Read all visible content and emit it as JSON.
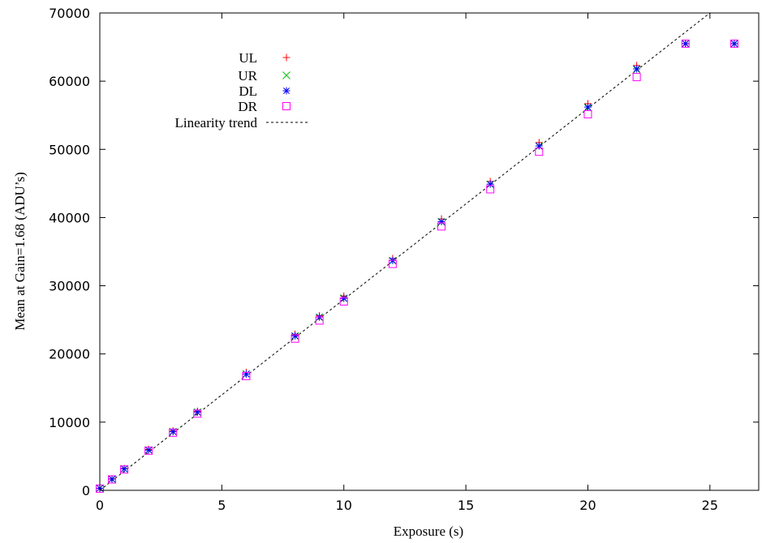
{
  "chart_data": {
    "type": "scatter",
    "xlabel": "Exposure (s)",
    "ylabel": "Mean at Gain=1.68 (ADU’s)",
    "xlim": [
      0,
      27
    ],
    "ylim": [
      0,
      70000
    ],
    "x_ticks": [
      0,
      5,
      10,
      15,
      20,
      25
    ],
    "y_ticks": [
      0,
      10000,
      20000,
      30000,
      40000,
      50000,
      60000,
      70000
    ],
    "x_tick_labels": [
      "0",
      "5",
      "10",
      "15",
      "20",
      "25"
    ],
    "y_tick_labels": [
      "0",
      "10000",
      "20000",
      "30000",
      "40000",
      "50000",
      "60000",
      "70000"
    ],
    "grid": false,
    "legend_position": "top-left",
    "x": [
      0,
      0.5,
      1,
      2,
      3,
      4,
      6,
      8,
      9,
      10,
      12,
      14,
      16,
      18,
      20,
      22,
      24,
      26
    ],
    "series": [
      {
        "name": "UL",
        "marker": "plus",
        "color": "#ff0000",
        "values": [
          300,
          1700,
          3200,
          6000,
          8700,
          11600,
          17300,
          22900,
          25600,
          28500,
          34000,
          39800,
          45300,
          51000,
          56700,
          62300,
          65500,
          65500
        ]
      },
      {
        "name": "UR",
        "marker": "cross",
        "color": "#00c000",
        "values": [
          300,
          1650,
          3150,
          5900,
          8600,
          11450,
          17050,
          22600,
          25350,
          28150,
          33650,
          39350,
          44850,
          50450,
          56100,
          61700,
          65500,
          65500
        ]
      },
      {
        "name": "DL",
        "marker": "asterisk",
        "color": "#0000ff",
        "values": [
          300,
          1650,
          3150,
          5900,
          8600,
          11450,
          17050,
          22650,
          25400,
          28150,
          33700,
          39400,
          44900,
          50500,
          56200,
          61800,
          65500,
          65500
        ]
      },
      {
        "name": "DR",
        "marker": "square",
        "color": "#ff00ff",
        "values": [
          250,
          1600,
          3050,
          5800,
          8450,
          11250,
          16750,
          22250,
          24900,
          27700,
          33200,
          38700,
          44150,
          49650,
          55150,
          60600,
          65500,
          65500
        ]
      }
    ],
    "trend": {
      "name": "Linearity trend",
      "slope": 2800,
      "intercept": 0,
      "color": "#000000",
      "style": "dotted"
    }
  }
}
